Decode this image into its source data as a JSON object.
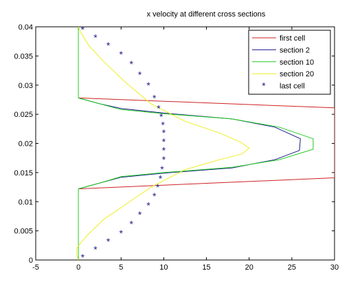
{
  "chart_data": {
    "type": "line",
    "title": "x velocity at different cross sections",
    "xlabel": "",
    "ylabel": "",
    "xlim": [
      -5,
      30
    ],
    "ylim": [
      0,
      0.04
    ],
    "xticks": [
      -5,
      0,
      5,
      10,
      15,
      20,
      25,
      30
    ],
    "xtick_labels": [
      "-5",
      "0",
      "5",
      "10",
      "15",
      "20",
      "25",
      "30"
    ],
    "yticks": [
      0,
      0.005,
      0.01,
      0.015,
      0.02,
      0.025,
      0.03,
      0.035,
      0.04
    ],
    "ytick_labels": [
      "0",
      "0.005",
      "0.01",
      "0.015",
      "0.02",
      "0.025",
      "0.03",
      "0.035",
      "0.04"
    ],
    "grid": false,
    "legend_position": "top-right",
    "series": [
      {
        "name": "first cell",
        "color": "#cc2222",
        "marker": "none",
        "points": [
          [
            0,
            0.0122
          ],
          [
            30,
            0.0141
          ],
          [
            30,
            0.0261
          ],
          [
            0,
            0.0278
          ]
        ]
      },
      {
        "name": "section 2",
        "color": "#1a1a8c",
        "marker": "none",
        "points": [
          [
            0,
            0.0122
          ],
          [
            2.5,
            0.0132
          ],
          [
            5,
            0.0142
          ],
          [
            10,
            0.0149
          ],
          [
            18,
            0.0158
          ],
          [
            23,
            0.0172
          ],
          [
            25.9,
            0.0188
          ],
          [
            26,
            0.0208
          ],
          [
            23,
            0.0228
          ],
          [
            18,
            0.0242
          ],
          [
            10,
            0.0252
          ],
          [
            5,
            0.026
          ],
          [
            2.5,
            0.0268
          ],
          [
            0,
            0.0278
          ]
        ]
      },
      {
        "name": "section 10",
        "color": "#22cc22",
        "marker": "none",
        "points": [
          [
            0,
            0
          ],
          [
            0,
            0.0122
          ],
          [
            2.5,
            0.0132
          ],
          [
            5,
            0.0143
          ],
          [
            10,
            0.015
          ],
          [
            18,
            0.0159
          ],
          [
            23.5,
            0.0172
          ],
          [
            27.5,
            0.019
          ],
          [
            27.5,
            0.0208
          ],
          [
            23.5,
            0.0228
          ],
          [
            18,
            0.0242
          ],
          [
            10,
            0.0251
          ],
          [
            5,
            0.0258
          ],
          [
            2.5,
            0.0268
          ],
          [
            0,
            0.0278
          ],
          [
            0,
            0.04
          ]
        ]
      },
      {
        "name": "section 20",
        "color": "#eeee22",
        "marker": "none",
        "points": [
          [
            0,
            0
          ],
          [
            -0.2,
            0.001
          ],
          [
            -0.2,
            0.002
          ],
          [
            0.3,
            0.003
          ],
          [
            1.2,
            0.0045
          ],
          [
            3,
            0.007
          ],
          [
            5.5,
            0.0095
          ],
          [
            8.5,
            0.0125
          ],
          [
            12.5,
            0.0155
          ],
          [
            16.5,
            0.0172
          ],
          [
            19.2,
            0.0182
          ],
          [
            20,
            0.0192
          ],
          [
            19,
            0.0202
          ],
          [
            16.5,
            0.0218
          ],
          [
            12.5,
            0.0238
          ],
          [
            8.5,
            0.0268
          ],
          [
            5.5,
            0.0305
          ],
          [
            3,
            0.034
          ],
          [
            1.2,
            0.0368
          ],
          [
            0.3,
            0.039
          ],
          [
            0,
            0.04
          ]
        ]
      },
      {
        "name": "last cell",
        "color": "#1a1a8c",
        "marker": "*",
        "points": [
          [
            0.5,
            0.0005
          ],
          [
            2,
            0.0018
          ],
          [
            3.5,
            0.0032
          ],
          [
            5,
            0.0046
          ],
          [
            6.2,
            0.0062
          ],
          [
            7.2,
            0.0078
          ],
          [
            8.2,
            0.0094
          ],
          [
            8.9,
            0.011
          ],
          [
            9.3,
            0.0125
          ],
          [
            9.6,
            0.014
          ],
          [
            9.8,
            0.0156
          ],
          [
            10,
            0.0172
          ],
          [
            10,
            0.0188
          ],
          [
            10,
            0.0203
          ],
          [
            10,
            0.0218
          ],
          [
            9.9,
            0.0232
          ],
          [
            9.7,
            0.0246
          ],
          [
            9.4,
            0.026
          ],
          [
            8.9,
            0.0278
          ],
          [
            8.2,
            0.03
          ],
          [
            7.2,
            0.0318
          ],
          [
            6.2,
            0.0336
          ],
          [
            5,
            0.0353
          ],
          [
            3.5,
            0.0368
          ],
          [
            2,
            0.0382
          ],
          [
            0.5,
            0.0395
          ]
        ]
      }
    ]
  }
}
